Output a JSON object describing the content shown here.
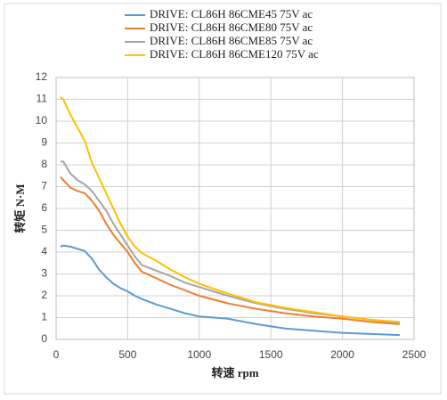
{
  "chart_data": {
    "type": "line",
    "x": [
      30,
      50,
      100,
      150,
      200,
      250,
      300,
      350,
      400,
      450,
      500,
      550,
      600,
      700,
      800,
      900,
      1000,
      1200,
      1400,
      1600,
      1800,
      2000,
      2200,
      2400
    ],
    "series": [
      {
        "name": "DRIVE: CL86H 86CME45 75V ac",
        "color": "#5b9bd5",
        "values": [
          4.25,
          4.3,
          4.25,
          4.15,
          4.05,
          3.7,
          3.2,
          2.85,
          2.55,
          2.35,
          2.2,
          2.0,
          1.85,
          1.6,
          1.4,
          1.2,
          1.05,
          0.95,
          0.7,
          0.5,
          0.4,
          0.3,
          0.25,
          0.2
        ]
      },
      {
        "name": "DRIVE: CL86H 86CME80 75V ac",
        "color": "#ed7d31",
        "values": [
          7.45,
          7.3,
          6.95,
          6.8,
          6.7,
          6.35,
          5.9,
          5.3,
          4.8,
          4.4,
          4.0,
          3.5,
          3.1,
          2.8,
          2.5,
          2.25,
          2.0,
          1.65,
          1.4,
          1.2,
          1.05,
          0.95,
          0.8,
          0.7
        ]
      },
      {
        "name": "DRIVE: CL86H 86CME85 75V ac",
        "color": "#a5a5a5",
        "values": [
          8.15,
          8.15,
          7.6,
          7.3,
          7.1,
          6.8,
          6.35,
          5.9,
          5.3,
          4.8,
          4.3,
          3.8,
          3.4,
          3.15,
          2.9,
          2.6,
          2.4,
          2.0,
          1.65,
          1.4,
          1.2,
          1.05,
          0.9,
          0.75
        ]
      },
      {
        "name": "DRIVE: CL86H 86CME120 75V ac",
        "color": "#ffc000",
        "values": [
          11.1,
          11.0,
          10.3,
          9.7,
          9.1,
          8.1,
          7.4,
          6.7,
          6.0,
          5.3,
          4.7,
          4.25,
          3.95,
          3.6,
          3.2,
          2.85,
          2.55,
          2.1,
          1.7,
          1.45,
          1.25,
          1.05,
          0.9,
          0.8
        ]
      }
    ],
    "xlabel": "转速 rpm",
    "ylabel": "转矩 N·M",
    "xlim": [
      0,
      2500
    ],
    "xticks": [
      0,
      500,
      1000,
      1500,
      2000,
      2500
    ],
    "ylim": [
      0,
      12
    ],
    "yticks": [
      0,
      1,
      2,
      3,
      4,
      5,
      6,
      7,
      8,
      9,
      10,
      11,
      12
    ],
    "grid": true
  }
}
